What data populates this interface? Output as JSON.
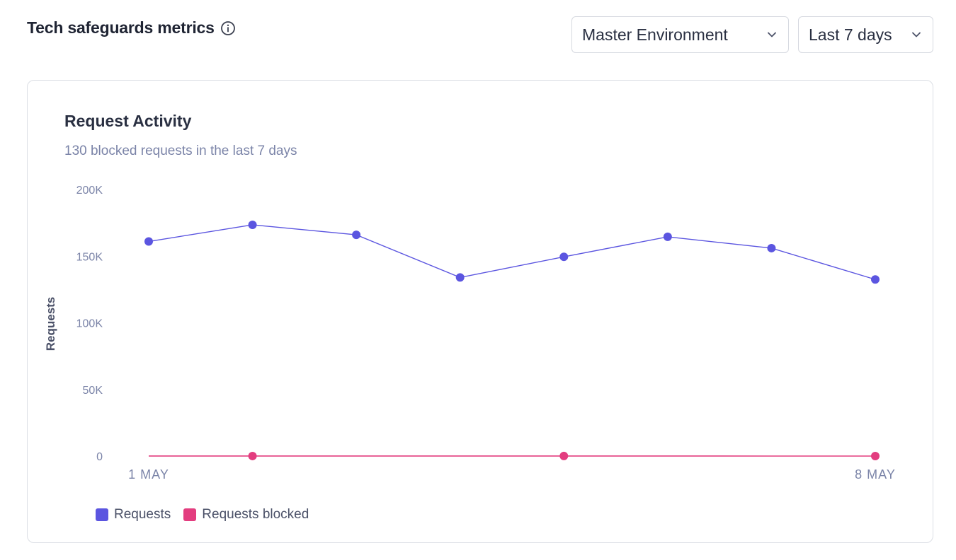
{
  "header": {
    "title": "Tech safeguards metrics",
    "info_icon": "info-circle-icon"
  },
  "filters": {
    "environment": {
      "selected": "Master Environment",
      "icon": "chevron-down-icon"
    },
    "range": {
      "selected": "Last 7 days",
      "icon": "chevron-down-icon"
    }
  },
  "card": {
    "title": "Request Activity",
    "subtitle": "130 blocked requests in the last 7 days"
  },
  "chart_data": {
    "type": "line",
    "ylabel": "Requests",
    "ylim": [
      0,
      200000
    ],
    "y_ticks": [
      "200K",
      "150K",
      "100K",
      "50K",
      "0"
    ],
    "y_tick_values": [
      200000,
      150000,
      100000,
      50000,
      0
    ],
    "x_tick_labels": [
      "1 MAY",
      "8 MAY"
    ],
    "point_count": 8,
    "grid": false,
    "legend_placement": "bottom-left",
    "series": [
      {
        "name": "Requests",
        "color": "#5b55e0",
        "values": [
          161000,
          173500,
          166000,
          134000,
          149500,
          164500,
          156000,
          132500
        ],
        "markers": [
          0,
          1,
          2,
          3,
          4,
          5,
          6,
          7
        ]
      },
      {
        "name": "Requests blocked",
        "color": "#e33d7f",
        "values": [
          20,
          30,
          15,
          10,
          35,
          10,
          5,
          5
        ],
        "markers": [
          1,
          4,
          7
        ]
      }
    ]
  },
  "legend": {
    "items": [
      {
        "label": "Requests",
        "color": "#5b55e0"
      },
      {
        "label": "Requests blocked",
        "color": "#e33d7f"
      }
    ]
  }
}
